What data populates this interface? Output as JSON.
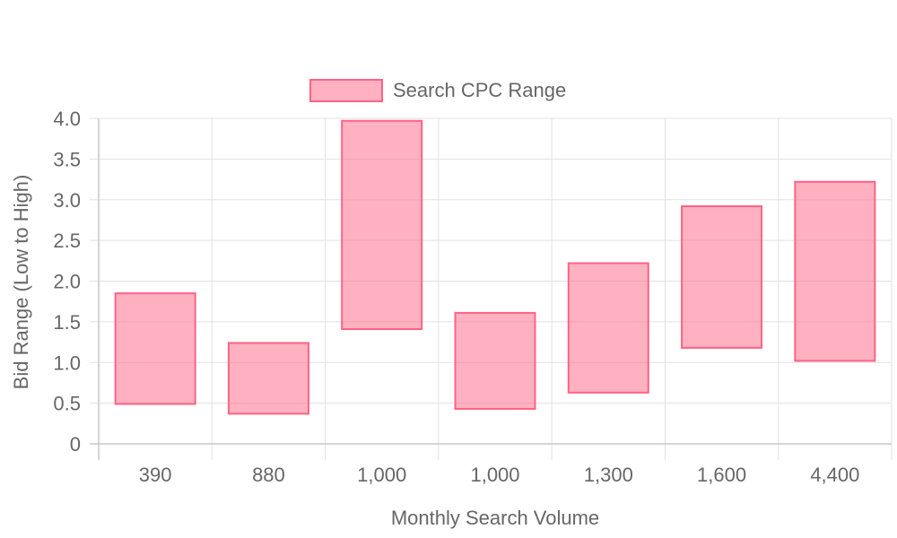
{
  "chart_data": {
    "type": "bar",
    "subtype": "floating-range",
    "categories": [
      "390",
      "880",
      "1,000",
      "1,000",
      "1,300",
      "1,600",
      "4,400"
    ],
    "series": [
      {
        "name": "Search CPC Range",
        "ranges": [
          [
            0.49,
            1.85
          ],
          [
            0.37,
            1.24
          ],
          [
            1.41,
            3.97
          ],
          [
            0.43,
            1.61
          ],
          [
            0.63,
            2.22
          ],
          [
            1.18,
            2.92
          ],
          [
            1.02,
            3.22
          ]
        ],
        "color": "#ff6384",
        "fill": "rgba(255,99,132,0.5)"
      }
    ],
    "xlabel": "Monthly Search Volume",
    "ylabel": "Bid Range (Low to High)",
    "ylim": [
      0,
      4.0
    ],
    "yticks": [
      "0",
      "0.5",
      "1.0",
      "1.5",
      "2.0",
      "2.5",
      "3.0",
      "3.5",
      "4.0"
    ],
    "grid": true,
    "legend_position": "top-center"
  }
}
